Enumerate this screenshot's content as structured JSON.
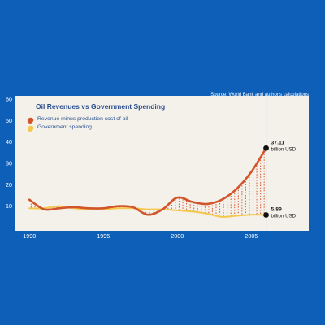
{
  "chart_data": {
    "type": "line",
    "title": "Oil Revenues vs Government Spending",
    "source": "Source: World Bank and author's calculations",
    "xlabel": "",
    "ylabel": "",
    "xlim": [
      1989,
      2006.3
    ],
    "ylim": [
      0,
      60
    ],
    "xticks": [
      1990,
      1995,
      2000,
      2005
    ],
    "yticks": [
      10,
      20,
      30,
      40,
      50,
      60
    ],
    "grid": false,
    "legend_position": "top-left",
    "series": [
      {
        "name": "Revenue minus production cost of oil",
        "color": "#d2542a",
        "x": [
          1990,
          1991,
          1992,
          1993,
          1994,
          1995,
          1996,
          1997,
          1998,
          1999,
          2000,
          2001,
          2002,
          2003,
          2004,
          2005,
          2006
        ],
        "values": [
          13,
          8.5,
          9,
          9.5,
          9,
          9,
          10,
          9.5,
          6,
          8.5,
          14,
          12,
          11,
          13,
          18,
          26,
          37.11
        ]
      },
      {
        "name": "Government spending",
        "color": "#f4c84c",
        "x": [
          1990,
          1991,
          1992,
          1993,
          1994,
          1995,
          1996,
          1997,
          1998,
          1999,
          2000,
          2001,
          2002,
          2003,
          2004,
          2005,
          2006
        ],
        "values": [
          9,
          9,
          10,
          9,
          8.5,
          8.5,
          9,
          9,
          8.5,
          8.5,
          8,
          7.5,
          6.5,
          5,
          5.5,
          6,
          5.89
        ]
      }
    ],
    "annotations": [
      {
        "value": "37.11",
        "unit": "billion USD",
        "x": 2006,
        "y": 37.11
      },
      {
        "value": "5.89",
        "unit": "billion USD",
        "x": 2006,
        "y": 5.89
      }
    ]
  }
}
